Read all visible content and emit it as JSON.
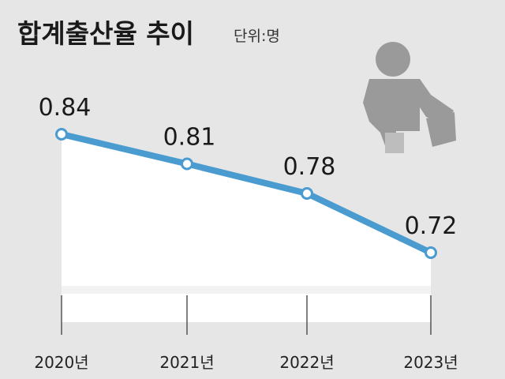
{
  "chart_data": {
    "type": "line",
    "title": "합계출산율 추이",
    "unit_label": "단위:명",
    "categories": [
      "2020년",
      "2021년",
      "2022년",
      "2023년"
    ],
    "values": [
      0.84,
      0.81,
      0.78,
      0.72
    ],
    "data_labels": [
      "0.84",
      "0.81",
      "0.78",
      "0.72"
    ],
    "xlabel": "",
    "ylabel": "",
    "ylim": [
      0.6,
      0.9
    ],
    "grid": false,
    "legend": "none",
    "colors": {
      "background": "#e6e6e6",
      "area": "#ffffff",
      "line": "#4a9bd0",
      "marker_fill": "#ffffff",
      "icon": "#9a9a9a"
    }
  },
  "decorations": {
    "baby_icon": "baby-crawling-icon"
  }
}
